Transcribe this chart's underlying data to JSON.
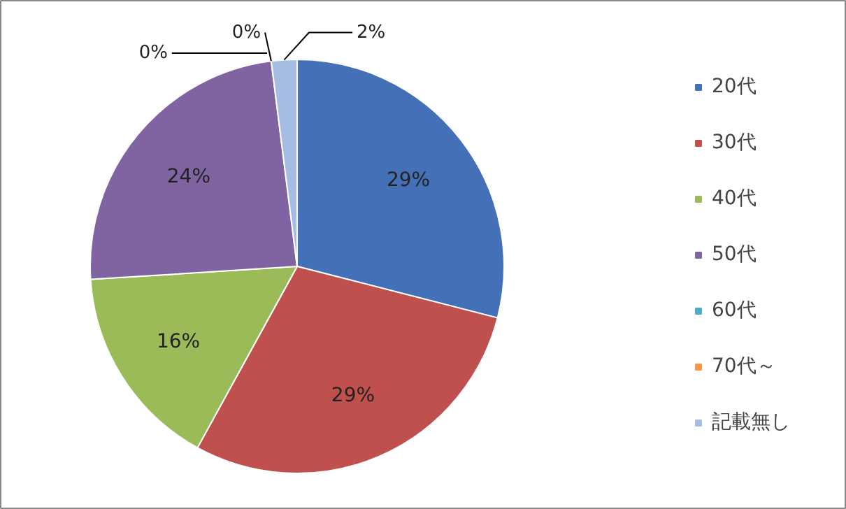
{
  "chart_data": {
    "type": "pie",
    "categories": [
      "20代",
      "30代",
      "40代",
      "50代",
      "60代",
      "70代～",
      "記載無し"
    ],
    "values": [
      29,
      29,
      16,
      24,
      0,
      0,
      2
    ],
    "colors": [
      "#4470b8",
      "#c0504d",
      "#9bbb59",
      "#8064a2",
      "#4bacc6",
      "#f79646",
      "#a5bde3"
    ],
    "value_labels": [
      "29%",
      "29%",
      "16%",
      "24%",
      "0%",
      "0%",
      "2%"
    ],
    "legend": "right"
  }
}
